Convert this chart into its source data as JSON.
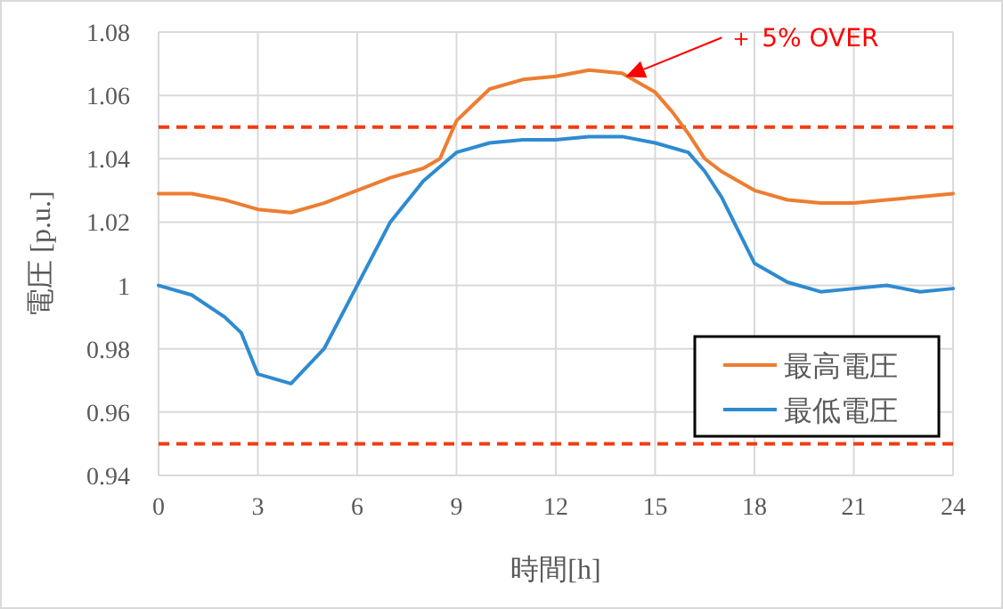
{
  "chart_data": {
    "type": "line",
    "xlabel": "時間[h]",
    "ylabel": "電圧 [p.u.]",
    "xlim": [
      0,
      24
    ],
    "xticks": [
      0,
      3,
      6,
      9,
      12,
      15,
      18,
      21,
      24
    ],
    "ylim": [
      0.94,
      1.08
    ],
    "yticks": [
      0.94,
      0.96,
      0.98,
      1,
      1.02,
      1.04,
      1.06,
      1.08
    ],
    "grid": true,
    "legend": "bottom right",
    "marker": "none",
    "line_style": "solid",
    "series": [
      {
        "name": "最高電圧",
        "color": "#ed7d31",
        "x": [
          0,
          1,
          2,
          3,
          4,
          5,
          6,
          7,
          8,
          8.5,
          9,
          9.5,
          10,
          11,
          12,
          13,
          14,
          15,
          15.5,
          16,
          16.5,
          17,
          18,
          19,
          20,
          21,
          22,
          23,
          24
        ],
        "values": [
          1.029,
          1.029,
          1.027,
          1.024,
          1.023,
          1.026,
          1.03,
          1.034,
          1.037,
          1.04,
          1.052,
          1.057,
          1.062,
          1.065,
          1.066,
          1.068,
          1.067,
          1.061,
          1.055,
          1.048,
          1.04,
          1.036,
          1.03,
          1.027,
          1.026,
          1.026,
          1.027,
          1.028,
          1.029
        ]
      },
      {
        "name": "最低電圧",
        "color": "#2e8bd0",
        "x": [
          0,
          1,
          2,
          2.5,
          3,
          4,
          5,
          6,
          7,
          8,
          9,
          10,
          11,
          12,
          13,
          14,
          15,
          16,
          16.5,
          17,
          18,
          19,
          20,
          21,
          22,
          22.5,
          23,
          24
        ],
        "values": [
          1.0,
          0.997,
          0.99,
          0.985,
          0.972,
          0.969,
          0.98,
          1.0,
          1.02,
          1.033,
          1.042,
          1.045,
          1.046,
          1.046,
          1.047,
          1.047,
          1.045,
          1.042,
          1.036,
          1.028,
          1.007,
          1.001,
          0.998,
          0.999,
          1.0,
          0.999,
          0.998,
          0.999
        ]
      }
    ],
    "ref_lines": [
      {
        "axis": "y",
        "value": 1.05,
        "color": "#f03c14",
        "line_style": "dashed"
      },
      {
        "axis": "y",
        "value": 0.95,
        "color": "#f03c14",
        "line_style": "dashed"
      }
    ],
    "annotations": [
      "＋ 5% OVER"
    ]
  }
}
